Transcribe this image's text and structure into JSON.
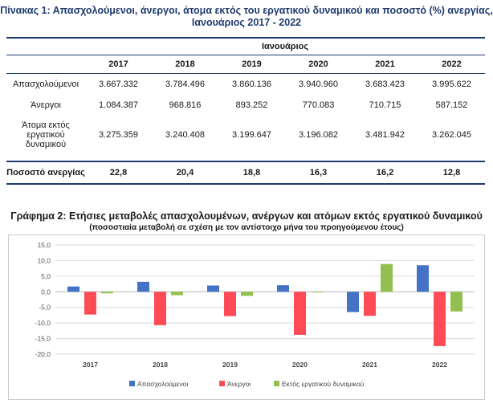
{
  "table": {
    "title_line1": "Πίνακας 1: Απασχολούμενοι, άνεργοι, άτομα εκτός του εργατικού δυναμικού και ποσοστό (%) ανεργίας,",
    "title_line2": "Ιανουάριος 2017 - 2022",
    "group_header": "Ιανουάριος",
    "years": [
      "2017",
      "2018",
      "2019",
      "2020",
      "2021",
      "2022"
    ],
    "rows": [
      {
        "label_lines": [
          "Απασχολούμενοι"
        ],
        "values": [
          "3.667.332",
          "3.784.496",
          "3.860.136",
          "3.940.960",
          "3.683.423",
          "3.995.622"
        ]
      },
      {
        "label_lines": [
          "Άνεργοι"
        ],
        "values": [
          "1.084.387",
          "968.816",
          "893.252",
          "770.083",
          "710.715",
          "587.152"
        ]
      },
      {
        "label_lines": [
          "Άτομα εκτός",
          "εργατικού",
          "δυναμικού"
        ],
        "values": [
          "3.275.359",
          "3.240.408",
          "3.199.647",
          "3.196.082",
          "3.481.942",
          "3.262.045"
        ]
      }
    ],
    "rate_row": {
      "label": "Ποσοστό ανεργίας",
      "values": [
        "22,8",
        "20,4",
        "18,8",
        "16,3",
        "16,2",
        "12,8"
      ]
    }
  },
  "chart_data": {
    "type": "bar",
    "title": "Γράφημα 2: Ετήσιες μεταβολές απασχολουμένων, ανέργων και ατόμων εκτός εργατικού δυναμικού",
    "subtitle": "(ποσοστιαία μεταβολή σε σχέση με τον αντίστοιχο μήνα του προηγούμενου έτους)",
    "categories": [
      "2017",
      "2018",
      "2019",
      "2020",
      "2021",
      "2022"
    ],
    "series": [
      {
        "name": "Απασχολούμενοι",
        "color": "#4472c4",
        "values": [
          1.7,
          3.2,
          2.0,
          2.1,
          -6.5,
          8.5
        ]
      },
      {
        "name": "Άνεργοι",
        "color": "#ff4b55",
        "values": [
          -7.3,
          -10.7,
          -7.8,
          -13.8,
          -7.7,
          -17.4
        ]
      },
      {
        "name": "Εκτός εργατικού δυναμικού",
        "color": "#92c050",
        "values": [
          -0.5,
          -1.1,
          -1.3,
          -0.1,
          8.9,
          -6.3
        ]
      }
    ],
    "ylim": [
      -20.0,
      15.0
    ],
    "yticks": [
      "15,0",
      "10,0",
      "5,0",
      "0,0",
      "-5,0",
      "-10,0",
      "-15,0",
      "-20,0"
    ],
    "ytick_values": [
      15,
      10,
      5,
      0,
      -5,
      -10,
      -15,
      -20
    ],
    "grid": true,
    "legend_position": "bottom"
  }
}
